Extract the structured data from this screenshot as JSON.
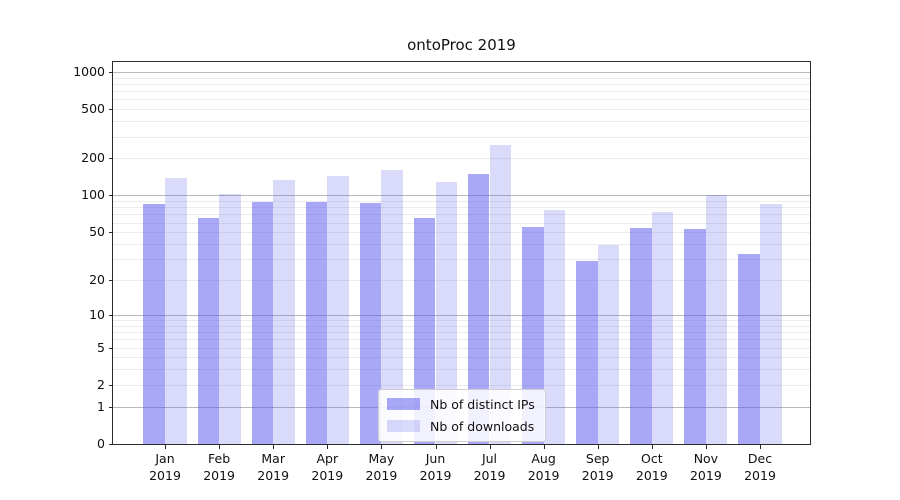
{
  "chart_data": {
    "type": "bar",
    "title": "ontoProc 2019",
    "categories": [
      "Jan 2019",
      "Feb 2019",
      "Mar 2019",
      "Apr 2019",
      "May 2019",
      "Jun 2019",
      "Jul 2019",
      "Aug 2019",
      "Sep 2019",
      "Oct 2019",
      "Nov 2019",
      "Dec 2019"
    ],
    "series": [
      {
        "name": "Nb of distinct IPs",
        "color": "rgba(85,85,238,0.51)",
        "values": [
          85,
          65,
          89,
          88,
          87,
          65,
          150,
          55,
          29,
          54,
          53,
          33
        ]
      },
      {
        "name": "Nb of downloads",
        "color": "rgba(85,85,238,0.22)",
        "values": [
          139,
          103,
          133,
          144,
          162,
          129,
          258,
          76,
          39,
          74,
          101,
          85
        ]
      }
    ],
    "yscale": "log1p",
    "yticks": [
      0,
      1,
      2,
      5,
      10,
      20,
      50,
      100,
      200,
      500,
      1000
    ],
    "ylim": [
      0,
      1202
    ],
    "grid": true,
    "legend_position": "lower center",
    "colors": {
      "grid_minor": "#ececec",
      "grid_major": "#b9b9b9",
      "axis": "#2b2b2b",
      "text": "#111111"
    }
  }
}
